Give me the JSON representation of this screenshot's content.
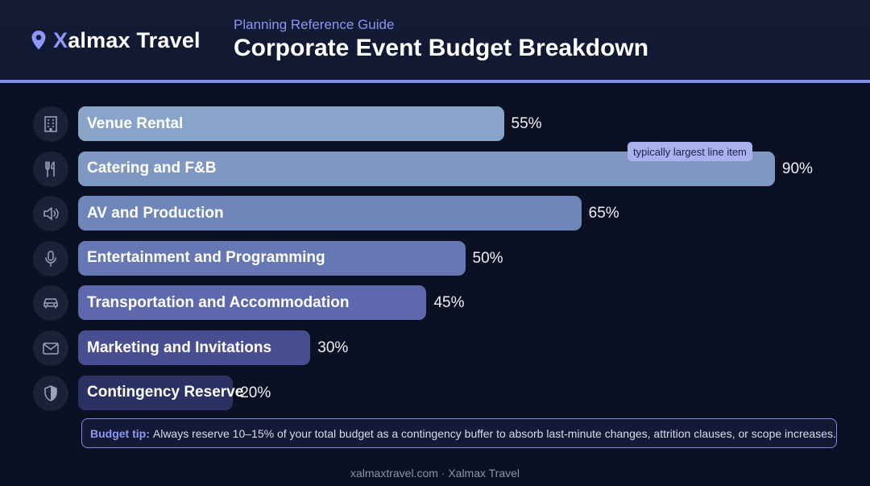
{
  "brand": {
    "first_letter": "X",
    "rest": "almax Travel"
  },
  "header": {
    "subtitle": "Planning Reference Guide",
    "title": "Corporate Event Budget Breakdown"
  },
  "colors": {
    "accent": "#7f8cf0",
    "bar_gradient_top": "#8fa8cc",
    "bar_gradient_bottom": "#283063"
  },
  "chart_data": {
    "type": "bar",
    "orientation": "horizontal",
    "title": "Corporate Event Budget Breakdown",
    "categories": [
      "Venue Rental",
      "Catering and F&B",
      "AV and Production",
      "Entertainment and Programming",
      "Transportation and Accommodation",
      "Marketing and Invitations",
      "Contingency Reserve"
    ],
    "values": [
      55,
      90,
      65,
      50,
      45,
      30,
      20
    ],
    "value_labels": [
      "55%",
      "90%",
      "65%",
      "50%",
      "45%",
      "30%",
      "20%"
    ],
    "icons": [
      "building-icon",
      "utensils-icon",
      "speaker-icon",
      "microphone-icon",
      "car-icon",
      "envelope-icon",
      "shield-icon"
    ],
    "xlim": [
      0,
      100
    ],
    "grid": false,
    "annotations": [
      {
        "category": "Catering and F&B",
        "text": "typically largest line item"
      }
    ]
  },
  "tip": {
    "label": "Budget tip:",
    "text": "Always reserve 10–15% of your total budget as a contingency buffer to absorb last-minute changes, attrition clauses, or scope increases."
  },
  "footer": {
    "text": "xalmaxtravel.com · Xalmax Travel"
  }
}
